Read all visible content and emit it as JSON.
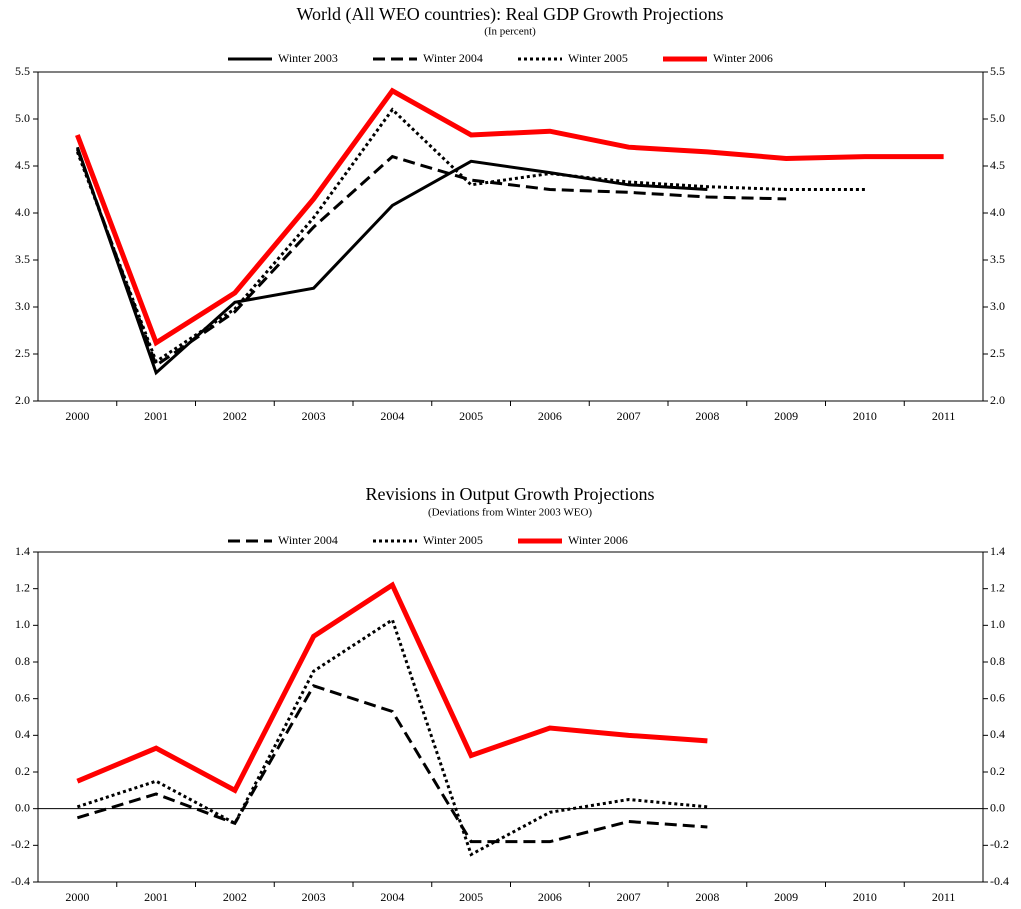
{
  "chart_data": [
    {
      "type": "line",
      "title": "World (All WEO countries): Real GDP Growth Projections",
      "subtitle": "(In percent)",
      "categories": [
        "2000",
        "2001",
        "2002",
        "2003",
        "2004",
        "2005",
        "2006",
        "2007",
        "2008",
        "2009",
        "2010",
        "2011"
      ],
      "series": [
        {
          "name": "Winter 2003",
          "color": "#000000",
          "dash": "solid",
          "values": [
            4.7,
            2.3,
            3.05,
            3.2,
            4.08,
            4.55,
            4.43,
            4.3,
            4.25,
            null,
            null,
            null
          ]
        },
        {
          "name": "Winter 2004",
          "color": "#000000",
          "dash": "dashed",
          "values": [
            4.68,
            2.38,
            2.95,
            3.85,
            4.6,
            4.35,
            4.25,
            4.22,
            4.17,
            4.15,
            null,
            null
          ]
        },
        {
          "name": "Winter 2005",
          "color": "#000000",
          "dash": "dotted",
          "values": [
            4.65,
            2.42,
            2.98,
            3.95,
            5.1,
            4.3,
            4.42,
            4.33,
            4.28,
            4.25,
            4.25,
            null
          ]
        },
        {
          "name": "Winter 2006",
          "color": "#ff0000",
          "dash": "solid",
          "values": [
            4.83,
            2.62,
            3.15,
            4.15,
            5.3,
            4.83,
            4.87,
            4.7,
            4.65,
            4.58,
            4.6,
            4.6
          ]
        }
      ],
      "ylim": [
        2.0,
        5.5
      ],
      "yticks": [
        {
          "value": 2,
          "label": "2.0"
        },
        2.5,
        {
          "value": 3,
          "label": "3.0"
        },
        3.5,
        {
          "value": 4,
          "label": "4.0"
        },
        4.5,
        {
          "value": 5,
          "label": "5.0"
        },
        5.5
      ],
      "grid": false,
      "zero_line": false,
      "legend": "top"
    },
    {
      "type": "line",
      "title": "Revisions in Output Growth Projections",
      "subtitle": "(Deviations from Winter 2003 WEO)",
      "categories": [
        "2000",
        "2001",
        "2002",
        "2003",
        "2004",
        "2005",
        "2006",
        "2007",
        "2008",
        "2009",
        "2010",
        "2011"
      ],
      "series": [
        {
          "name": "Winter 2004",
          "color": "#000000",
          "dash": "dashed",
          "values": [
            -0.05,
            0.08,
            -0.08,
            0.67,
            0.53,
            -0.18,
            -0.18,
            -0.07,
            -0.1,
            null,
            null,
            null
          ]
        },
        {
          "name": "Winter 2005",
          "color": "#000000",
          "dash": "dotted",
          "values": [
            0.01,
            0.15,
            -0.08,
            0.75,
            1.03,
            -0.25,
            -0.02,
            0.05,
            0.01,
            null,
            null,
            null
          ]
        },
        {
          "name": "Winter 2006",
          "color": "#ff0000",
          "dash": "solid",
          "values": [
            0.15,
            0.33,
            0.1,
            0.94,
            1.22,
            0.29,
            0.44,
            0.4,
            0.37,
            null,
            null,
            null
          ]
        }
      ],
      "ylim": [
        -0.4,
        1.4
      ],
      "yticks": [
        -0.4,
        -0.2,
        {
          "value": 0,
          "label": "0.0"
        },
        0.2,
        0.4,
        0.6,
        0.8,
        {
          "value": 1,
          "label": "1.0"
        },
        1.2,
        1.4
      ],
      "grid": false,
      "zero_line": true,
      "legend": "top"
    }
  ]
}
